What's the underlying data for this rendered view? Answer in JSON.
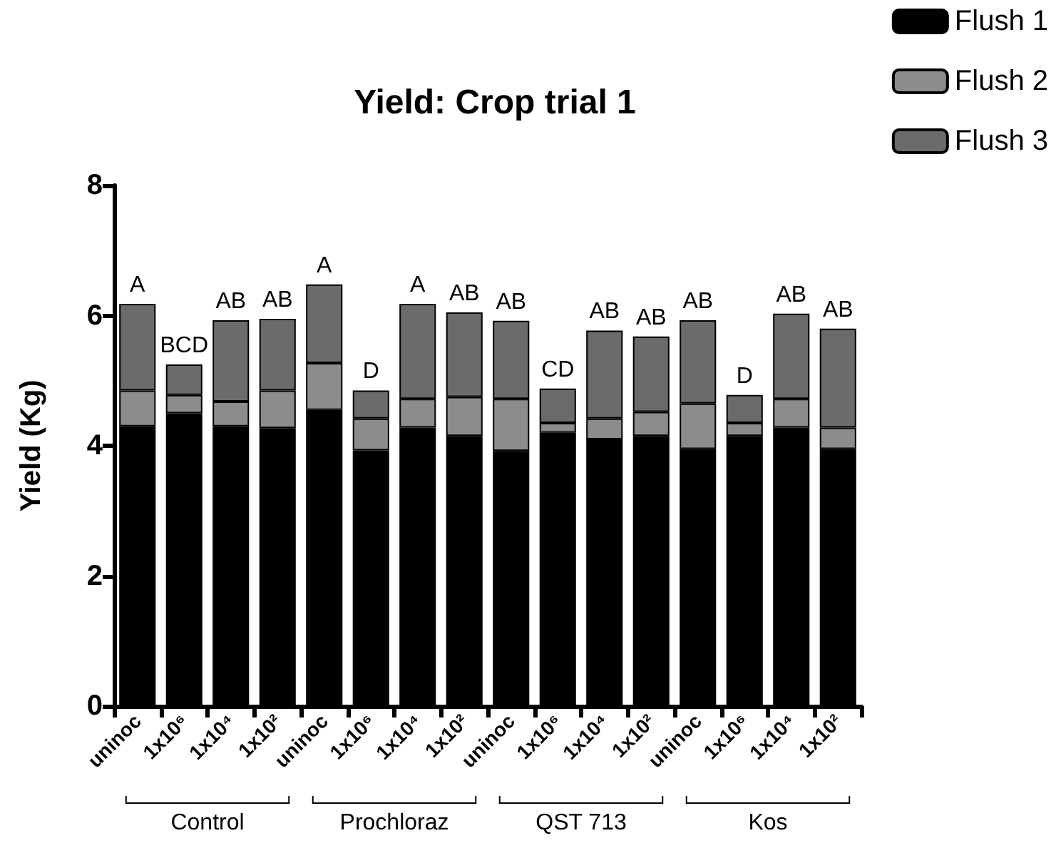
{
  "chart_data": {
    "type": "bar",
    "title": "Yield: Crop trial 1",
    "ylabel": "Yield (Kg)",
    "stacked": true,
    "categories": [
      "uninoc",
      "1x10⁶",
      "1x10⁴",
      "1x10²",
      "uninoc",
      "1x10⁶",
      "1x10⁴",
      "1x10²",
      "uninoc",
      "1x10⁶",
      "1x10⁴",
      "1x10²",
      "uninoc",
      "1x10⁶",
      "1x10⁴",
      "1x10²"
    ],
    "series": [
      {
        "name": "Flush 1",
        "color": "#000000",
        "values": [
          4.3,
          4.5,
          4.3,
          4.27,
          4.55,
          3.93,
          4.28,
          4.15,
          3.92,
          4.2,
          4.1,
          4.15,
          3.95,
          4.15,
          4.28,
          3.95
        ]
      },
      {
        "name": "Flush 2",
        "color": "#8c8c8c",
        "values": [
          0.55,
          0.28,
          0.38,
          0.58,
          0.72,
          0.49,
          0.44,
          0.6,
          0.8,
          0.15,
          0.32,
          0.37,
          0.7,
          0.2,
          0.44,
          0.33
        ]
      },
      {
        "name": "Flush 3",
        "color": "#6b6b6b",
        "values": [
          1.33,
          0.47,
          1.25,
          1.1,
          1.21,
          0.43,
          1.46,
          1.3,
          1.2,
          0.53,
          1.35,
          1.16,
          1.28,
          0.43,
          1.31,
          1.52
        ],
        "value_labels": [
          "A",
          "BCD",
          "AB",
          "AB",
          "A",
          "D",
          "A",
          "AB",
          "AB",
          "CD",
          "AB",
          "AB",
          "AB",
          "D",
          "AB",
          "AB"
        ]
      }
    ],
    "ylim": [
      0,
      8
    ],
    "yticks": [
      0,
      2,
      4,
      6,
      8
    ],
    "grid": false,
    "legend": "top right",
    "annotations": [
      "Control",
      "Prochloraz",
      "QST 713",
      "Kos"
    ]
  }
}
